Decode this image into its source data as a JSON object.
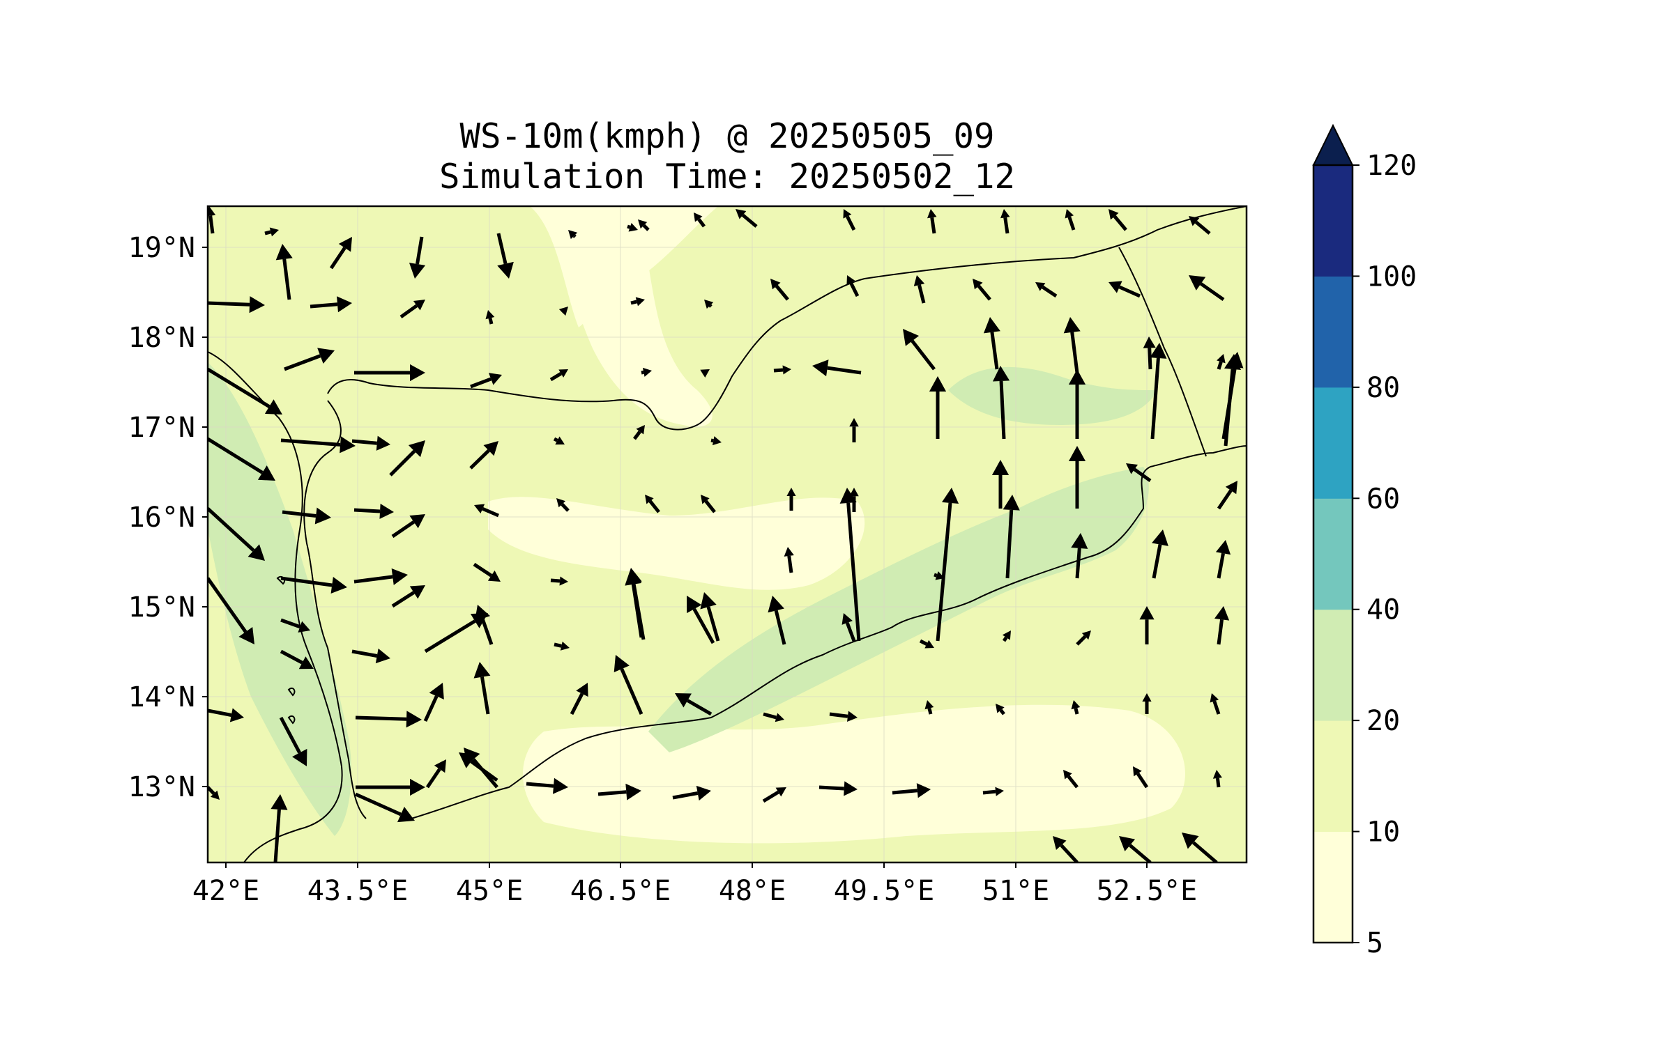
{
  "title": {
    "line1": "WS-10m(kmph) @ 20250505_09",
    "line2": "Simulation Time: 20250502_12"
  },
  "map": {
    "lon_range": [
      41.95,
      53.8
    ],
    "lat_range": [
      12.15,
      19.45
    ],
    "lon_ticks": [
      {
        "value": 42.0,
        "label": "42°E"
      },
      {
        "value": 43.5,
        "label": "43.5°E"
      },
      {
        "value": 45.0,
        "label": "45°E"
      },
      {
        "value": 46.5,
        "label": "46.5°E"
      },
      {
        "value": 48.0,
        "label": "48°E"
      },
      {
        "value": 49.5,
        "label": "49.5°E"
      },
      {
        "value": 51.0,
        "label": "51°E"
      },
      {
        "value": 52.5,
        "label": "52.5°E"
      }
    ],
    "lat_ticks": [
      {
        "value": 19,
        "label": "19°N"
      },
      {
        "value": 18,
        "label": "18°N"
      },
      {
        "value": 17,
        "label": "17°N"
      },
      {
        "value": 16,
        "label": "16°N"
      },
      {
        "value": 15,
        "label": "15°N"
      },
      {
        "value": 14,
        "label": "14°N"
      },
      {
        "value": 13,
        "label": "13°N"
      }
    ]
  },
  "colorbar": {
    "levels": [
      {
        "label": "5",
        "color": "#ffffd9"
      },
      {
        "label": "10",
        "color": "#eef8b5"
      },
      {
        "label": "20",
        "color": "#d0ecb3"
      },
      {
        "label": "40",
        "color": "#74c7bd"
      },
      {
        "label": "60",
        "color": "#2ea3c2"
      },
      {
        "label": "80",
        "color": "#2163aa"
      },
      {
        "label": "100",
        "color": "#1a2a7e"
      },
      {
        "label": "120",
        "color": ""
      }
    ],
    "extend_color": "#0b1f4e"
  },
  "colors": {
    "background": "#ffffd9",
    "band_light": "#eef8b5",
    "band_mid": "#d0ecb3",
    "coast": "#000000",
    "arrow": "#000000"
  }
}
